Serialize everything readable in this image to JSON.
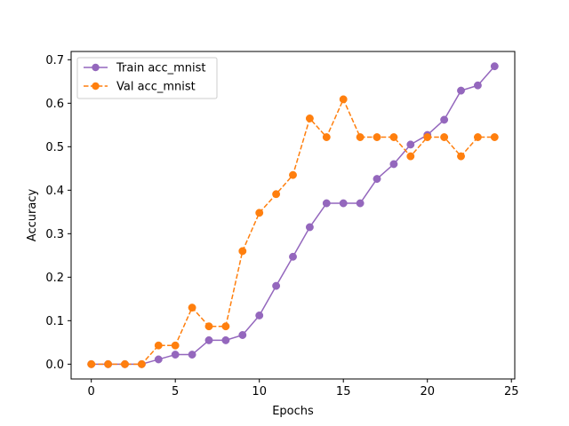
{
  "chart_data": {
    "type": "line",
    "title": "",
    "xlabel": "Epochs",
    "ylabel": "Accuracy",
    "xlim": [
      -1.2,
      25.2
    ],
    "ylim": [
      -0.034,
      0.719
    ],
    "xticks": [
      0,
      5,
      10,
      15,
      20,
      25
    ],
    "yticks": [
      0.0,
      0.1,
      0.2,
      0.3,
      0.4,
      0.5,
      0.6,
      0.7
    ],
    "ytick_labels": [
      "0.0",
      "0.1",
      "0.2",
      "0.3",
      "0.4",
      "0.5",
      "0.6",
      "0.7"
    ],
    "grid": false,
    "legend_position": "upper-left",
    "series": [
      {
        "name": "Train acc_mnist",
        "color": "#9467bd",
        "line_style": "solid",
        "marker": "circle",
        "x": [
          0,
          1,
          2,
          3,
          4,
          5,
          6,
          7,
          8,
          9,
          10,
          11,
          12,
          13,
          14,
          15,
          16,
          17,
          18,
          19,
          20,
          21,
          22,
          23,
          24
        ],
        "y": [
          0.0,
          0.0,
          0.0,
          0.0,
          0.011,
          0.022,
          0.022,
          0.055,
          0.055,
          0.067,
          0.112,
          0.18,
          0.247,
          0.315,
          0.37,
          0.37,
          0.37,
          0.426,
          0.46,
          0.505,
          0.527,
          0.562,
          0.629,
          0.641,
          0.685
        ]
      },
      {
        "name": "Val acc_mnist",
        "color": "#ff7f0e",
        "line_style": "dashed",
        "marker": "circle",
        "x": [
          0,
          1,
          2,
          3,
          4,
          5,
          6,
          7,
          8,
          9,
          10,
          11,
          12,
          13,
          14,
          15,
          16,
          17,
          18,
          19,
          20,
          21,
          22,
          23,
          24
        ],
        "y": [
          0.0,
          0.0,
          0.0,
          0.0,
          0.043,
          0.043,
          0.13,
          0.087,
          0.087,
          0.26,
          0.348,
          0.391,
          0.435,
          0.565,
          0.522,
          0.609,
          0.522,
          0.522,
          0.522,
          0.478,
          0.522,
          0.522,
          0.478,
          0.522,
          0.522
        ]
      }
    ]
  }
}
